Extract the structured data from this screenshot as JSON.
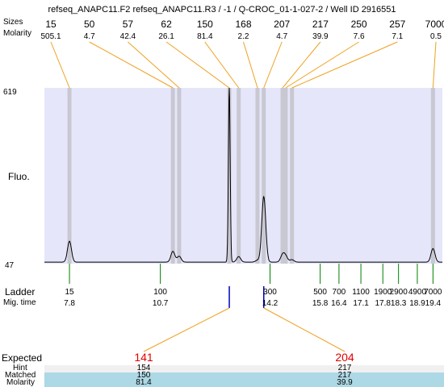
{
  "title": "refseq_ANAPC11.F2  refseq_ANAPC11.R3 / -1 / Q-CROC_01-1-027-2 / Well ID 2916551",
  "top_labels": {
    "sizes": "Sizes",
    "molarity": "Molarity"
  },
  "y_axis": {
    "label": "Fluo.",
    "max": "619",
    "min": "47"
  },
  "ladder_labels": {
    "ladder": "Ladder",
    "mig_time": "Mig. time"
  },
  "table_labels": {
    "expected": "Expected",
    "hint": "Hint",
    "matched": "Matched",
    "molarity": "Molarity"
  },
  "colors": {
    "band": "#e6e6fa",
    "peak_line": "#c8c8d2",
    "connector": "#f0a020",
    "ladder_tick": "#008000",
    "expected_tick": "#0000c0",
    "expected_text": "#e00000",
    "matched_bg": "#add8e6",
    "trace": "#000000"
  },
  "chart_data": {
    "type": "line",
    "title": "refseq_ANAPC11.F2  refseq_ANAPC11.R3 / -1 / Q-CROC_01-1-027-2 / Well ID 2916551",
    "xlabel": "Mig. time",
    "ylabel": "Fluo.",
    "ylim": [
      47,
      619
    ],
    "xlim": [
      7.0,
      19.7
    ],
    "peaks": [
      {
        "size": "15",
        "molarity": "505.1",
        "time": 7.8,
        "height": 120
      },
      {
        "size": "50",
        "molarity": "4.7",
        "time": 11.1,
        "height": 87
      },
      {
        "size": "57",
        "molarity": "42.4",
        "time": 11.3,
        "height": 71
      },
      {
        "size": "62",
        "molarity": "26.1",
        "time": 12.9,
        "height": 619
      },
      {
        "size": "150",
        "molarity": "81.4",
        "time": 13.2,
        "height": 70
      },
      {
        "size": "168",
        "molarity": "2.2",
        "time": 13.8,
        "height": 58
      },
      {
        "size": "207",
        "molarity": "4.7",
        "time": 14.0,
        "height": 265
      },
      {
        "size": "217",
        "molarity": "39.9",
        "time": 14.6,
        "height": 75
      },
      {
        "size": "250",
        "molarity": "7.6",
        "time": 14.7,
        "height": 70
      },
      {
        "size": "257",
        "molarity": "7.1",
        "time": 14.9,
        "height": 60
      },
      {
        "size": "7000",
        "molarity": "0.5",
        "time": 19.4,
        "height": 96
      }
    ],
    "ladder": [
      {
        "size": "15",
        "time": "7.8"
      },
      {
        "size": "100",
        "time": "10.7"
      },
      {
        "size": "300",
        "time": "14.2"
      },
      {
        "size": "500",
        "time": "15.8"
      },
      {
        "size": "700",
        "time": "16.4"
      },
      {
        "size": "1100",
        "time": "17.1"
      },
      {
        "size": "1900",
        "time": "17.8"
      },
      {
        "size": "2900",
        "time": "18.3"
      },
      {
        "size": "4900",
        "time": "18.9"
      },
      {
        "size": "7000",
        "time": "19.4"
      }
    ],
    "expected": [
      {
        "expected": "141",
        "hint": "154",
        "matched": "150",
        "molarity": "81.4",
        "time": 12.9
      },
      {
        "expected": "204",
        "hint": "217",
        "matched": "217",
        "molarity": "39.9",
        "time": 14.0
      }
    ]
  }
}
